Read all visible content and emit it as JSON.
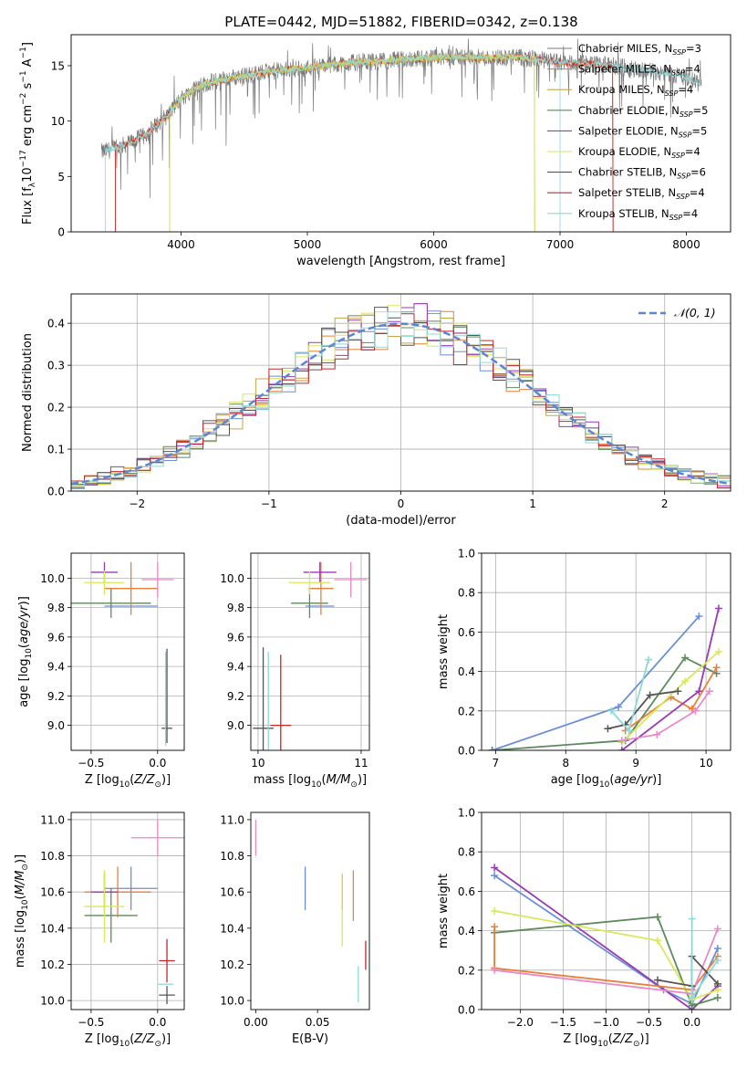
{
  "figure_title": "PLATE=0442, MJD=51882, FIBERID=0342, z=0.138",
  "colors": [
    "#6a8fd6",
    "#e8803a",
    "#c8a648",
    "#5e8a5e",
    "#9a3ab5",
    "#d9e85a",
    "#555555",
    "#c4262a",
    "#8fd8d8"
  ],
  "legend_entries": [
    {
      "imf": "Chabrier",
      "lib": "MILES",
      "nssp": "3",
      "color": "#7a7a7a"
    },
    {
      "imf": "Salpeter",
      "lib": "MILES",
      "nssp": "4",
      "color": "#e8803a"
    },
    {
      "imf": "Kroupa",
      "lib": "MILES",
      "nssp": "4",
      "color": "#c8a648"
    },
    {
      "imf": "Chabrier",
      "lib": "ELODIE",
      "nssp": "5",
      "color": "#5e8a5e"
    },
    {
      "imf": "Salpeter",
      "lib": "ELODIE",
      "nssp": "5",
      "color": "#9a3ab5"
    },
    {
      "imf": "Kroupa",
      "lib": "ELODIE",
      "nssp": "4",
      "color": "#d9e85a"
    },
    {
      "imf": "Chabrier",
      "lib": "STELIB",
      "nssp": "6",
      "color": "#555555"
    },
    {
      "imf": "Salpeter",
      "lib": "STELIB",
      "nssp": "4",
      "color": "#c4262a"
    },
    {
      "imf": "Kroupa",
      "lib": "STELIB",
      "nssp": "4",
      "color": "#8fd8d8"
    }
  ],
  "chart_data": [
    {
      "id": "spectrum",
      "type": "line",
      "xlabel": "wavelength [Angstrom, rest frame]",
      "ylabel": "Flux [f",
      "xlim": [
        3130,
        8350
      ],
      "ylim": [
        0,
        17.8
      ],
      "xticks": [
        4000,
        5000,
        6000,
        7000,
        8000
      ],
      "yticks": [
        0,
        5,
        10,
        15
      ],
      "grid": false,
      "legend": "top-right",
      "data_continuum": {
        "x": [
          3370,
          3500,
          3700,
          3900,
          4000,
          4100,
          4200,
          4400,
          4600,
          4800,
          5000,
          5200,
          5400,
          5600,
          5800,
          6000,
          6200,
          6400,
          6600,
          6800,
          7000,
          7200,
          7400,
          7600,
          7800,
          8000,
          8120
        ],
        "y": [
          7.2,
          7.6,
          8.6,
          10.6,
          12.0,
          12.9,
          13.4,
          13.9,
          14.3,
          14.6,
          14.8,
          15.1,
          15.3,
          15.4,
          15.6,
          15.7,
          15.8,
          15.7,
          15.8,
          15.6,
          15.3,
          15.2,
          15.0,
          14.7,
          14.4,
          14.0,
          13.2
        ]
      },
      "model_cutoffs": [
        {
          "color": "#8fd8d8",
          "x_start": 3400,
          "x_end": 7000
        },
        {
          "color": "#e8803a",
          "x_start": 3480,
          "x_end": 7420
        },
        {
          "color": "#c4262a",
          "x_start": 3480,
          "x_end": 7420
        },
        {
          "color": "#c8a648",
          "x_start": 3910,
          "x_end": 6800
        },
        {
          "color": "#d9e85a",
          "x_start": 3910,
          "x_end": 6800
        }
      ]
    },
    {
      "id": "residuals",
      "type": "bar",
      "xlabel": "(data-model)/error",
      "ylabel": "Normed distribution",
      "xlim": [
        -2.5,
        2.5
      ],
      "ylim": [
        0,
        0.47
      ],
      "xticks": [
        -2,
        -1,
        0,
        1,
        2
      ],
      "yticks": [
        0.0,
        0.1,
        0.2,
        0.3,
        0.4
      ],
      "grid": true,
      "legend": "top-right",
      "reference_curve": {
        "label": "𝒩(0, 1)",
        "mean": 0,
        "sigma": 1,
        "color": "#5a86d6"
      },
      "bin_width": 0.1
    },
    {
      "id": "age_vs_Z",
      "type": "scatter",
      "xlabel": "Z [log",
      "ylabel": "age  [log",
      "xlim": [
        -0.65,
        0.2
      ],
      "ylim": [
        8.83,
        10.17
      ],
      "xticks": [
        -0.5,
        0.0
      ],
      "yticks": [
        9.0,
        9.2,
        9.4,
        9.6,
        9.8,
        10.0
      ],
      "grid": true,
      "points": [
        {
          "color": "#6a8fd6",
          "x": -0.2,
          "y": 9.81,
          "xerr": 0.2,
          "yerr": 0.0
        },
        {
          "color": "#5e8a5e",
          "x": -0.35,
          "y": 9.83,
          "xerr": 0.3,
          "yerr": 0.1
        },
        {
          "color": "#e8803a",
          "x": -0.2,
          "y": 9.93,
          "xerr": 0.2,
          "yerr": 0.18
        },
        {
          "color": "#9a3ab5",
          "x": -0.4,
          "y": 10.04,
          "xerr": 0.1,
          "yerr": 0.07
        },
        {
          "color": "#d9e85a",
          "x": -0.4,
          "y": 9.97,
          "xerr": 0.15,
          "yerr": 0.08
        },
        {
          "color": "#e88ac8",
          "x": 0.0,
          "y": 9.99,
          "xerr": 0.12,
          "yerr": 0.12
        },
        {
          "color": "#555555",
          "x": 0.07,
          "y": 8.98,
          "xerr": 0.04,
          "yerr": 0.0
        },
        {
          "color": "#8fd8d8",
          "x": 0.06,
          "y": 9.18,
          "xerr": 0.0,
          "yerr": 0.32
        },
        {
          "color": "#555555",
          "x": 0.07,
          "y": 9.2,
          "xerr": 0.0,
          "yerr": 0.32
        }
      ]
    },
    {
      "id": "age_vs_mass",
      "type": "scatter",
      "xlabel": "mass [log",
      "ylabel": "",
      "xlim": [
        9.93,
        11.08
      ],
      "ylim": [
        8.83,
        10.17
      ],
      "xticks": [
        10,
        11
      ],
      "yticks": [
        9.0,
        9.2,
        9.4,
        9.6,
        9.8,
        10.0
      ],
      "grid": true,
      "points": [
        {
          "color": "#6a8fd6",
          "x": 10.6,
          "y": 9.81,
          "xerr": 0.14,
          "yerr": 0.0
        },
        {
          "color": "#5e8a5e",
          "x": 10.5,
          "y": 9.83,
          "xerr": 0.18,
          "yerr": 0.1
        },
        {
          "color": "#e8803a",
          "x": 10.61,
          "y": 9.93,
          "xerr": 0.12,
          "yerr": 0.18
        },
        {
          "color": "#9a3ab5",
          "x": 10.6,
          "y": 10.04,
          "xerr": 0.16,
          "yerr": 0.07
        },
        {
          "color": "#d9e85a",
          "x": 10.5,
          "y": 9.97,
          "xerr": 0.2,
          "yerr": 0.08
        },
        {
          "color": "#e88ac8",
          "x": 10.9,
          "y": 9.99,
          "xerr": 0.16,
          "yerr": 0.12
        },
        {
          "color": "#555555",
          "x": 10.05,
          "y": 8.98,
          "xerr": 0.1,
          "yerr": 0.55
        },
        {
          "color": "#8fd8d8",
          "x": 10.1,
          "y": 9.0,
          "xerr": 0.0,
          "yerr": 0.5
        },
        {
          "color": "#c4262a",
          "x": 10.22,
          "y": 9.0,
          "xerr": 0.1,
          "yerr": 0.48
        }
      ]
    },
    {
      "id": "massweight_vs_age",
      "type": "line",
      "xlabel": "age  [log",
      "ylabel": "mass weight",
      "xlim": [
        6.8,
        10.35
      ],
      "ylim": [
        0,
        1
      ],
      "xticks": [
        7,
        8,
        9,
        10
      ],
      "yticks": [
        0.0,
        0.2,
        0.4,
        0.6,
        0.8,
        1.0
      ],
      "grid": true,
      "series": [
        {
          "color": "#6a8fd6",
          "x": [
            6.95,
            8.75,
            9.9
          ],
          "y": [
            0.0,
            0.22,
            0.68
          ]
        },
        {
          "color": "#5e8a5e",
          "x": [
            6.95,
            8.85,
            9.7,
            10.15
          ],
          "y": [
            0.0,
            0.05,
            0.47,
            0.39
          ]
        },
        {
          "color": "#e8803a",
          "x": [
            8.85,
            9.5,
            9.8,
            10.15
          ],
          "y": [
            0.1,
            0.27,
            0.21,
            0.42
          ]
        },
        {
          "color": "#9a3ab5",
          "x": [
            8.8,
            9.9,
            10.18
          ],
          "y": [
            0.0,
            0.3,
            0.72
          ]
        },
        {
          "color": "#d9e85a",
          "x": [
            8.8,
            9.7,
            10.18
          ],
          "y": [
            0.04,
            0.35,
            0.5
          ]
        },
        {
          "color": "#e88ac8",
          "x": [
            8.8,
            9.3,
            9.85,
            10.05
          ],
          "y": [
            0.05,
            0.08,
            0.2,
            0.3
          ]
        },
        {
          "color": "#555555",
          "x": [
            8.6,
            8.85,
            9.2,
            9.6
          ],
          "y": [
            0.11,
            0.13,
            0.28,
            0.3
          ]
        },
        {
          "color": "#8fd8d8",
          "x": [
            8.65,
            8.9,
            9.18
          ],
          "y": [
            0.2,
            0.1,
            0.46
          ]
        }
      ]
    },
    {
      "id": "mass_vs_Z",
      "type": "scatter",
      "xlabel": "Z [log",
      "ylabel": "mass [log",
      "xlim": [
        -0.65,
        0.2
      ],
      "ylim": [
        9.95,
        11.04
      ],
      "xticks": [
        -0.5,
        0.0
      ],
      "yticks": [
        10.0,
        10.2,
        10.4,
        10.6,
        10.8,
        11.0
      ],
      "grid": true,
      "points": [
        {
          "color": "#6a8fd6",
          "x": -0.2,
          "y": 10.62,
          "xerr": 0.2,
          "yerr": 0.12
        },
        {
          "color": "#5e8a5e",
          "x": -0.35,
          "y": 10.47,
          "xerr": 0.2,
          "yerr": 0.15
        },
        {
          "color": "#e8803a",
          "x": -0.3,
          "y": 10.6,
          "xerr": 0.25,
          "yerr": 0.14
        },
        {
          "color": "#9a3ab5",
          "x": -0.4,
          "y": 10.6,
          "xerr": 0.1,
          "yerr": 0.1
        },
        {
          "color": "#d9e85a",
          "x": -0.4,
          "y": 10.52,
          "xerr": 0.15,
          "yerr": 0.2
        },
        {
          "color": "#e88ac8",
          "x": 0.0,
          "y": 10.9,
          "xerr": 0.2,
          "yerr": 0.1
        },
        {
          "color": "#c4262a",
          "x": 0.07,
          "y": 10.22,
          "xerr": 0.06,
          "yerr": 0.12
        },
        {
          "color": "#8fd8d8",
          "x": 0.06,
          "y": 10.09,
          "xerr": 0.06,
          "yerr": 0.0
        },
        {
          "color": "#555555",
          "x": 0.07,
          "y": 10.03,
          "xerr": 0.06,
          "yerr": 0.05
        }
      ]
    },
    {
      "id": "mass_vs_ebv",
      "type": "scatter",
      "xlabel": "E(B-V)",
      "ylabel": "",
      "xlim": [
        -0.004,
        0.092
      ],
      "ylim": [
        9.95,
        11.04
      ],
      "xticks": [
        0.0,
        0.05
      ],
      "yticks": [
        10.0,
        10.2,
        10.4,
        10.6,
        10.8,
        11.0
      ],
      "grid": false,
      "points": [
        {
          "color": "#e88ac8",
          "x": 0.0,
          "y": 10.9,
          "xerr": 0.0,
          "yerr": 0.1
        },
        {
          "color": "#6a8fd6",
          "x": 0.04,
          "y": 10.62,
          "xerr": 0.0,
          "yerr": 0.12
        },
        {
          "color": "#9a3ab5",
          "x": 0.07,
          "y": 10.6,
          "xerr": 0.0,
          "yerr": 0.1
        },
        {
          "color": "#d9e85a",
          "x": 0.07,
          "y": 10.5,
          "xerr": 0.0,
          "yerr": 0.2
        },
        {
          "color": "#e8803a",
          "x": 0.079,
          "y": 10.58,
          "xerr": 0.0,
          "yerr": 0.14
        },
        {
          "color": "#8fd8d8",
          "x": 0.083,
          "y": 10.09,
          "xerr": 0.0,
          "yerr": 0.1
        },
        {
          "color": "#c4262a",
          "x": 0.089,
          "y": 10.25,
          "xerr": 0.0,
          "yerr": 0.08
        }
      ]
    },
    {
      "id": "massweight_vs_Z",
      "type": "line",
      "xlabel": "Z [log",
      "ylabel": "mass weight",
      "xlim": [
        -2.45,
        0.45
      ],
      "ylim": [
        0,
        1
      ],
      "xticks": [
        -2.0,
        -1.5,
        -1.0,
        -0.5,
        0.0
      ],
      "yticks": [
        0.0,
        0.2,
        0.4,
        0.6,
        0.8,
        1.0
      ],
      "grid": true,
      "series": [
        {
          "color": "#6a8fd6",
          "x": [
            -2.3,
            -0.33,
            0.0,
            0.3
          ],
          "y": [
            0.68,
            0.1,
            0.03,
            0.31
          ]
        },
        {
          "color": "#9a3ab5",
          "x": [
            -2.3,
            0.0,
            0.3
          ],
          "y": [
            0.72,
            0.0,
            0.12
          ]
        },
        {
          "color": "#5e8a5e",
          "x": [
            -2.3,
            -0.4,
            0.0,
            0.3
          ],
          "y": [
            0.39,
            0.47,
            0.02,
            0.06
          ]
        },
        {
          "color": "#d9e85a",
          "x": [
            -2.3,
            -0.4,
            0.0,
            0.3
          ],
          "y": [
            0.5,
            0.35,
            0.05,
            0.1
          ]
        },
        {
          "color": "#e8803a",
          "x": [
            -2.3,
            -2.3,
            0.0,
            0.3
          ],
          "y": [
            0.42,
            0.21,
            0.1,
            0.27
          ]
        },
        {
          "color": "#e88ac8",
          "x": [
            -2.3,
            0.0,
            0.3
          ],
          "y": [
            0.2,
            0.08,
            0.41
          ]
        },
        {
          "color": "#555555",
          "x": [
            -0.4,
            0.0,
            0.0,
            0.3
          ],
          "y": [
            0.15,
            0.12,
            0.27,
            0.13
          ]
        },
        {
          "color": "#8fd8d8",
          "x": [
            0.0,
            0.0,
            0.3
          ],
          "y": [
            0.46,
            0.06,
            0.25
          ]
        }
      ]
    }
  ]
}
